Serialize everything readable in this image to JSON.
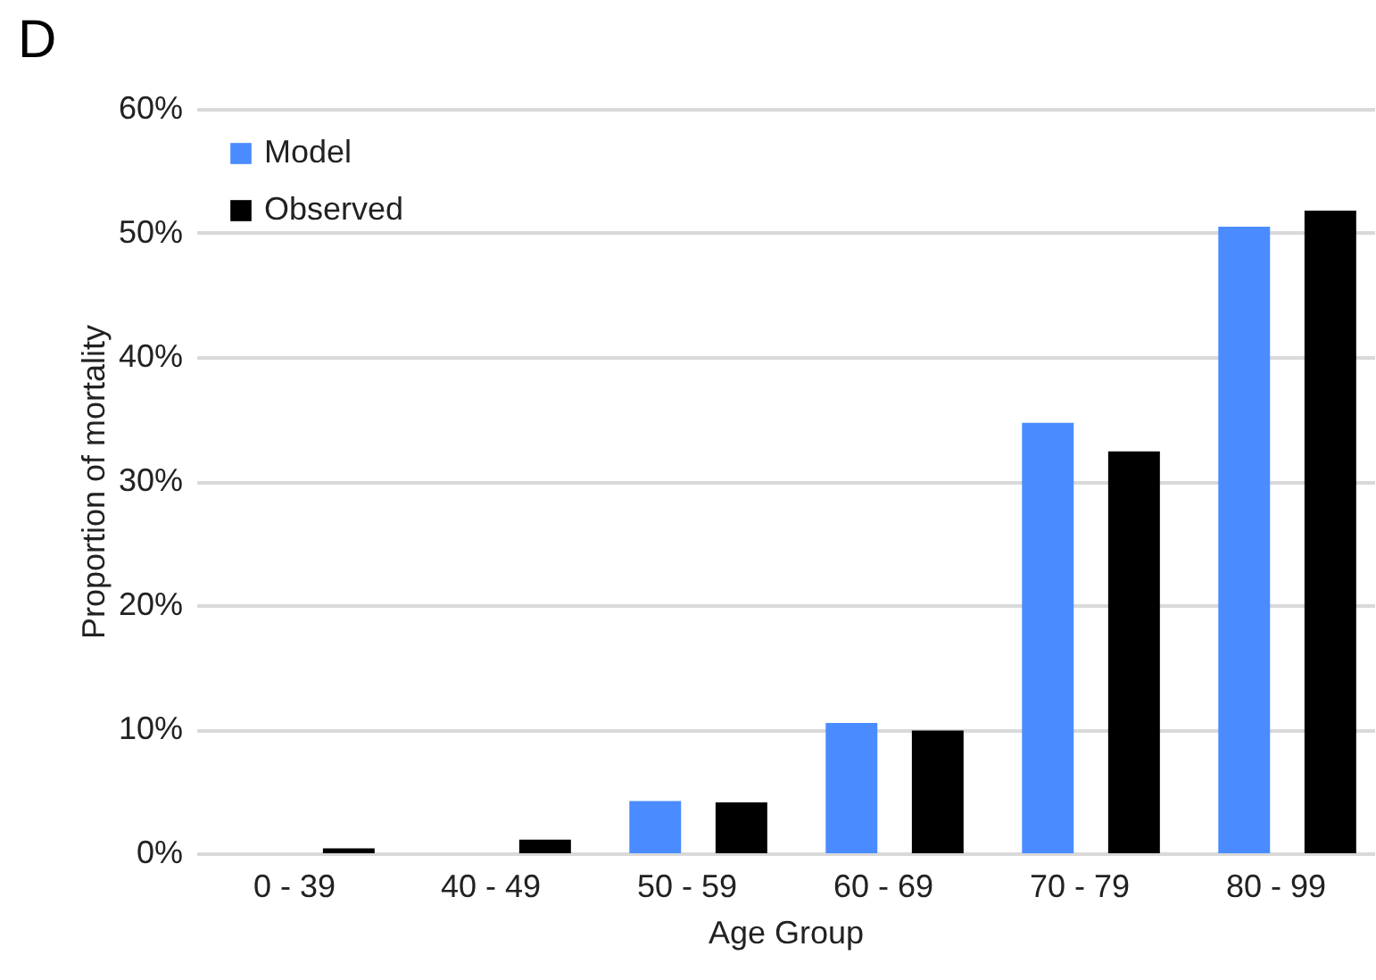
{
  "chart_data": {
    "type": "bar",
    "title": "D",
    "xlabel": "Age Group",
    "ylabel": "Proportion of mortality",
    "categories": [
      "0 - 39",
      "40 - 49",
      "50 - 59",
      "60 - 69",
      "70 - 79",
      "80 - 99"
    ],
    "series": [
      {
        "name": "Model",
        "color": "#4a8cff",
        "values": [
          0,
          0,
          4.2,
          10.5,
          34.7,
          50.5
        ]
      },
      {
        "name": "Observed",
        "color": "#000000",
        "values": [
          0.4,
          1.1,
          4.1,
          9.9,
          32.4,
          51.8
        ]
      }
    ],
    "ylim": [
      0,
      60
    ],
    "yticks": [
      {
        "value": 0,
        "label": "0%"
      },
      {
        "value": 10,
        "label": "10%"
      },
      {
        "value": 20,
        "label": "20%"
      },
      {
        "value": 30,
        "label": "30%"
      },
      {
        "value": 40,
        "label": "40%"
      },
      {
        "value": 50,
        "label": "50%"
      },
      {
        "value": 60,
        "label": "60%"
      }
    ],
    "grid": "y",
    "legend": "top left"
  }
}
